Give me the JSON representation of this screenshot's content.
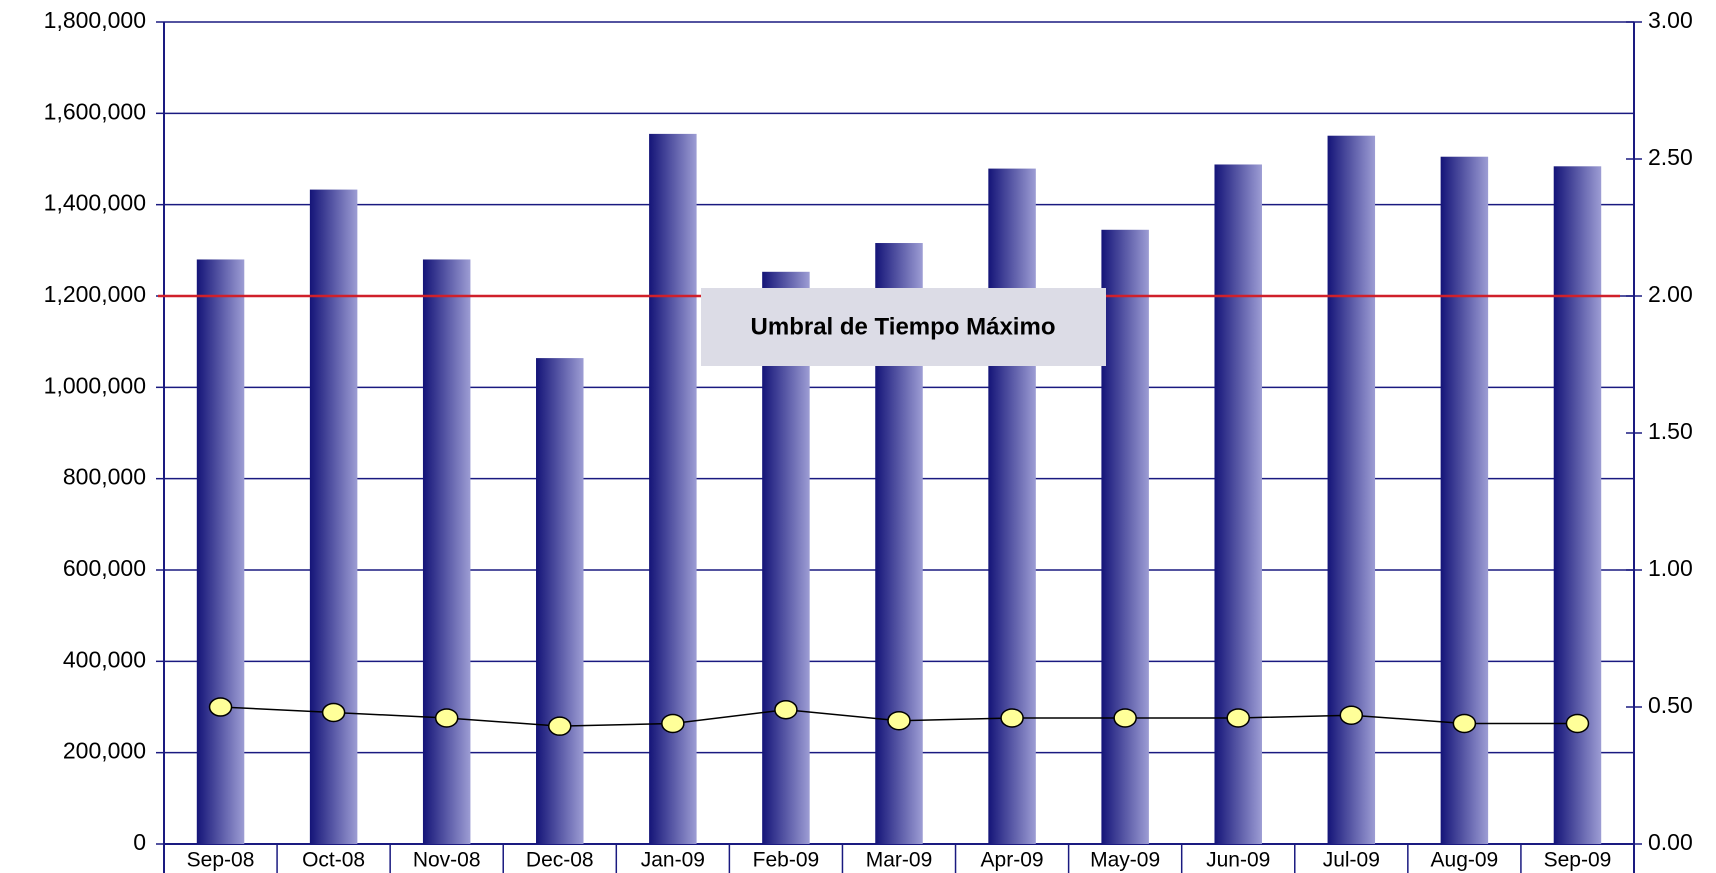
{
  "chart_data": {
    "type": "bar",
    "categories": [
      "Sep-08",
      "Oct-08",
      "Nov-08",
      "Dec-08",
      "Jan-09",
      "Feb-09",
      "Mar-09",
      "Apr-09",
      "May-09",
      "Jun-09",
      "Jul-09",
      "Aug-09",
      "Sep-09"
    ],
    "series": [
      {
        "type": "bar",
        "color": "#1a1a80",
        "values": [
          1280000,
          1433000,
          1280000,
          1064000,
          1555000,
          1253000,
          1316000,
          1479000,
          1345000,
          1488000,
          1551000,
          1505000,
          1484000
        ]
      },
      {
        "type": "line",
        "axis": "y2",
        "color": "#000000",
        "marker_color": "#ffff99",
        "values": [
          0.5,
          0.48,
          0.46,
          0.43,
          0.44,
          0.49,
          0.45,
          0.46,
          0.46,
          0.46,
          0.47,
          0.44,
          0.44
        ]
      }
    ],
    "ylim": [
      0,
      1800000
    ],
    "yticks": [
      0,
      {
        "value": 200000,
        "label": "200,000"
      },
      {
        "value": 400000,
        "label": "400,000"
      },
      {
        "value": 600000,
        "label": "600,000"
      },
      {
        "value": 800000,
        "label": "800,000"
      },
      {
        "value": 1000000,
        "label": "1,000,000"
      },
      {
        "value": 1200000,
        "label": "1,200,000"
      },
      {
        "value": 1400000,
        "label": "1,400,000"
      },
      {
        "value": 1600000,
        "label": "1,600,000"
      },
      {
        "value": 1800000,
        "label": "1,800,000"
      }
    ],
    "y2lim": [
      0,
      3
    ],
    "y2ticks": [
      {
        "value": 0,
        "label": "0.00"
      },
      {
        "value": 0.5,
        "label": "0.50"
      },
      {
        "value": 1,
        "label": "1.00"
      },
      {
        "value": 1.5,
        "label": "1.50"
      },
      {
        "value": 2,
        "label": "2.00"
      },
      {
        "value": 2.5,
        "label": "2.50"
      },
      {
        "value": 3,
        "label": "3.00"
      }
    ],
    "grid": true,
    "threshold": {
      "value": 1200000,
      "color": "#d0202a",
      "label": "Umbral de Tiempo Máximo"
    }
  }
}
